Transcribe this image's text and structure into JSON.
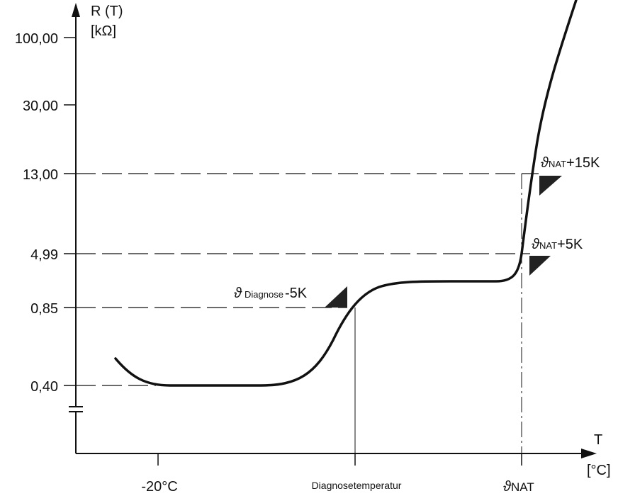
{
  "y_axis": {
    "label_line1": "R (T)",
    "label_line2": "[kΩ]",
    "ticks": [
      "100,00",
      "30,00",
      "13,00",
      "4,99",
      "0,85",
      "0,40"
    ]
  },
  "x_axis": {
    "label_line1": "T",
    "label_line2": "[°C]",
    "ticks": {
      "minus20": "-20°C",
      "diagnose": "Diagnosetemperatur",
      "nat_symbol": "ϑ",
      "nat_sub": "NAT"
    }
  },
  "annotations": {
    "diagnose_symbol": "ϑ",
    "diagnose_sub": "Diagnose",
    "diagnose_suffix": "-5K",
    "nat5_symbol": "ϑ",
    "nat5_sub": "NAT",
    "nat5_suffix": "+5K",
    "nat15_symbol": "ϑ",
    "nat15_sub": "NAT",
    "nat15_suffix": "+15K"
  }
}
